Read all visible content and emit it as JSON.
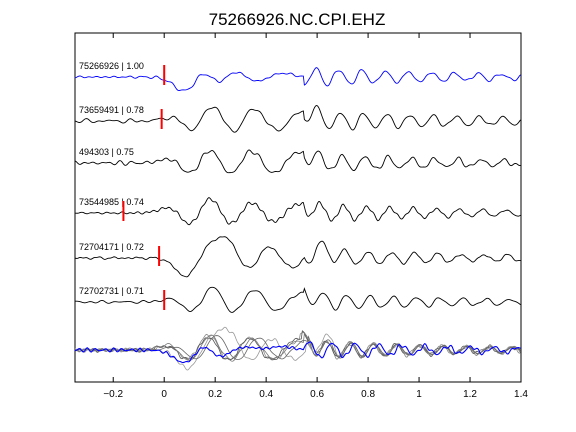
{
  "chart_data": {
    "type": "line",
    "title": "75266926.NC.CPI.EHZ",
    "xlabel": "",
    "ylabel": "",
    "xlim": [
      -0.35,
      1.4
    ],
    "x_ticks": [
      -0.2,
      0,
      0.2,
      0.4,
      0.6,
      0.8,
      1.0,
      1.2,
      1.4
    ],
    "x_tick_labels": [
      "−0.2",
      "0",
      "0.2",
      "0.4",
      "0.6",
      "0.8",
      "1",
      "1.2",
      "1.4"
    ],
    "grid": false,
    "series": [
      {
        "id": "75266926",
        "cc": "1.00",
        "label": "75266926 | 1.00",
        "color": "#0000ff",
        "pick": 0.0,
        "events": [
          [
            0.1,
            -1.0,
            0.07
          ],
          [
            0.15,
            0.9,
            0.06
          ],
          [
            0.21,
            -0.6,
            0.055
          ],
          [
            0.27,
            0.4,
            0.06
          ],
          [
            0.36,
            -0.25,
            0.06
          ],
          [
            0.46,
            0.2,
            0.06
          ]
        ]
      },
      {
        "id": "73659491",
        "cc": "0.78",
        "label": "73659491 | 0.78",
        "color": "#000000",
        "pick": -0.01,
        "events": [
          [
            0.07,
            0.45,
            0.07
          ],
          [
            0.11,
            -0.9,
            0.06
          ],
          [
            0.19,
            1.0,
            0.06
          ],
          [
            0.27,
            -0.8,
            0.06
          ],
          [
            0.35,
            0.8,
            0.06
          ],
          [
            0.44,
            -0.6,
            0.06
          ],
          [
            0.54,
            0.5,
            0.07
          ]
        ]
      },
      {
        "id": "494303",
        "cc": "0.75",
        "label": "494303 | 0.75",
        "color": "#000000",
        "pick": null,
        "events": [
          [
            0.06,
            0.5,
            0.07
          ],
          [
            0.1,
            -1.0,
            0.06
          ],
          [
            0.18,
            0.9,
            0.06
          ],
          [
            0.26,
            -0.8,
            0.06
          ],
          [
            0.34,
            0.8,
            0.06
          ],
          [
            0.43,
            -0.7,
            0.06
          ],
          [
            0.52,
            0.6,
            0.07
          ]
        ]
      },
      {
        "id": "73544985",
        "cc": "0.74",
        "label": "73544985 | 0.74",
        "color": "#000000",
        "pick": -0.16,
        "events": [
          [
            0.05,
            0.5,
            0.07
          ],
          [
            0.1,
            -1.0,
            0.06
          ],
          [
            0.18,
            1.0,
            0.06
          ],
          [
            0.26,
            -0.8,
            0.06
          ],
          [
            0.34,
            0.7,
            0.06
          ],
          [
            0.43,
            -0.6,
            0.06
          ],
          [
            0.52,
            0.5,
            0.07
          ]
        ]
      },
      {
        "id": "72704171",
        "cc": "0.72",
        "label": "72704171 | 0.72",
        "color": "#000000",
        "pick": -0.02,
        "events": [
          [
            0.09,
            -1.0,
            0.06
          ],
          [
            0.17,
            0.6,
            0.06
          ],
          [
            0.25,
            1.0,
            0.06
          ],
          [
            0.33,
            -0.8,
            0.06
          ],
          [
            0.41,
            0.8,
            0.06
          ],
          [
            0.5,
            -0.6,
            0.07
          ],
          [
            0.6,
            0.5,
            0.07
          ]
        ]
      },
      {
        "id": "72702731",
        "cc": "0.71",
        "label": "72702731 | 0.71",
        "color": "#000000",
        "pick": 0.0,
        "events": [
          [
            0.07,
            0.4,
            0.07
          ],
          [
            0.11,
            -0.9,
            0.06
          ],
          [
            0.19,
            1.0,
            0.06
          ],
          [
            0.27,
            -0.8,
            0.06
          ],
          [
            0.35,
            0.8,
            0.06
          ],
          [
            0.44,
            -0.6,
            0.06
          ],
          [
            0.53,
            0.5,
            0.07
          ]
        ]
      }
    ],
    "stack": {
      "name": "stack",
      "overlay_colors": [
        "#888888",
        "#555555",
        "#777777",
        "#999999",
        "#666666"
      ],
      "stack_color": "#0000ff"
    }
  }
}
